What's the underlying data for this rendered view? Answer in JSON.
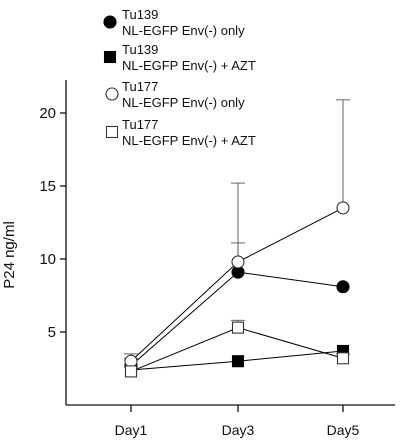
{
  "chart_data": {
    "type": "line",
    "title": "",
    "xlabel": "",
    "ylabel": "P24 ng/ml",
    "categories": [
      "Day1",
      "Day3",
      "Day5"
    ],
    "ylim": [
      0,
      22
    ],
    "yticks": [
      5,
      10,
      15,
      20
    ],
    "grid": false,
    "legend_position": "top-left",
    "series": [
      {
        "name": "Tu139 NL-EGFP Env(-) only",
        "legend_lines": [
          "Tu139",
          "NL-EGFP Env(-) only"
        ],
        "marker": "filled-circle",
        "values": [
          2.7,
          9.1,
          8.1
        ],
        "error_plus": [
          0.5,
          2.0,
          0
        ],
        "color": "#000000"
      },
      {
        "name": "Tu139 NL-EGFP Env(-) + AZT",
        "legend_lines": [
          "Tu139",
          "NL-EGFP Env(-) + AZT"
        ],
        "marker": "filled-square",
        "values": [
          2.4,
          3.0,
          3.7
        ],
        "error_plus": [
          0,
          0,
          0
        ],
        "color": "#000000"
      },
      {
        "name": "Tu177 NL-EGFP Env(-) only",
        "legend_lines": [
          "Tu177",
          "NL-EGFP Env(-) only"
        ],
        "marker": "open-circle",
        "values": [
          3.0,
          9.8,
          13.5
        ],
        "error_plus": [
          0.5,
          5.4,
          7.4
        ],
        "color": "#000000"
      },
      {
        "name": "Tu177 NL-EGFP Env(-) + AZT",
        "legend_lines": [
          "Tu177",
          "NL-EGFP Env(-) + AZT"
        ],
        "marker": "open-square",
        "values": [
          2.3,
          5.3,
          3.2
        ],
        "error_plus": [
          0.3,
          0.5,
          0.3
        ],
        "color": "#000000"
      }
    ]
  }
}
